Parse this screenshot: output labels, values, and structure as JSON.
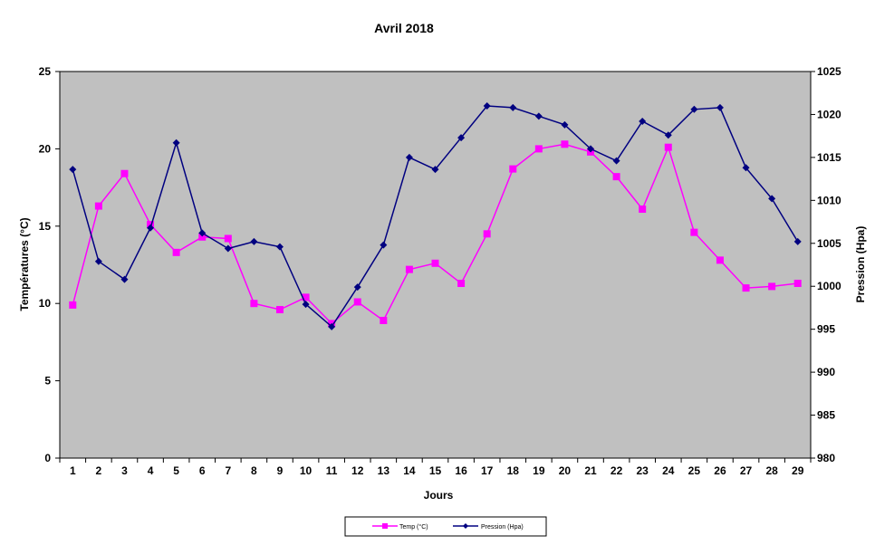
{
  "chart_data": {
    "type": "line",
    "title": "Avril 2018",
    "xlabel": "Jours",
    "ylabel_left": "Températures (°C)",
    "ylabel_right": "Pression (Hpa)",
    "x": [
      1,
      2,
      3,
      4,
      5,
      6,
      7,
      8,
      9,
      10,
      11,
      12,
      13,
      14,
      15,
      16,
      17,
      18,
      19,
      20,
      21,
      22,
      23,
      24,
      25,
      26,
      27,
      28,
      29
    ],
    "y_left": {
      "min": 0,
      "max": 25,
      "ticks": [
        0,
        5,
        10,
        15,
        20,
        25
      ]
    },
    "y_right": {
      "min": 980,
      "max": 1025,
      "ticks": [
        980,
        985,
        990,
        995,
        1000,
        1005,
        1010,
        1015,
        1020,
        1025
      ]
    },
    "grid": false,
    "plot_background": "#C0C0C0",
    "legend_position": "bottom",
    "series": [
      {
        "name": "Temp (°C)",
        "axis": "left",
        "color": "#FF00FF",
        "marker": "square",
        "values": [
          9.9,
          16.3,
          18.4,
          15.1,
          13.3,
          14.3,
          14.2,
          10.0,
          9.6,
          10.4,
          8.7,
          10.1,
          8.9,
          12.2,
          12.6,
          11.3,
          14.5,
          18.7,
          20.0,
          20.3,
          19.8,
          18.2,
          16.1,
          20.1,
          14.6,
          12.8,
          11.0,
          11.1,
          11.3
        ]
      },
      {
        "name": "Pression (Hpa)",
        "axis": "right",
        "color": "#000080",
        "marker": "diamond",
        "values": [
          1013.6,
          1002.9,
          1000.8,
          1006.8,
          1016.7,
          1006.2,
          1004.4,
          1005.2,
          1004.6,
          997.9,
          995.3,
          999.9,
          1004.8,
          1015.0,
          1013.6,
          1017.3,
          1021.0,
          1020.8,
          1019.8,
          1018.8,
          1016.0,
          1014.6,
          1019.2,
          1017.6,
          1020.6,
          1020.8,
          1013.8,
          1010.2,
          1005.2
        ]
      }
    ]
  }
}
